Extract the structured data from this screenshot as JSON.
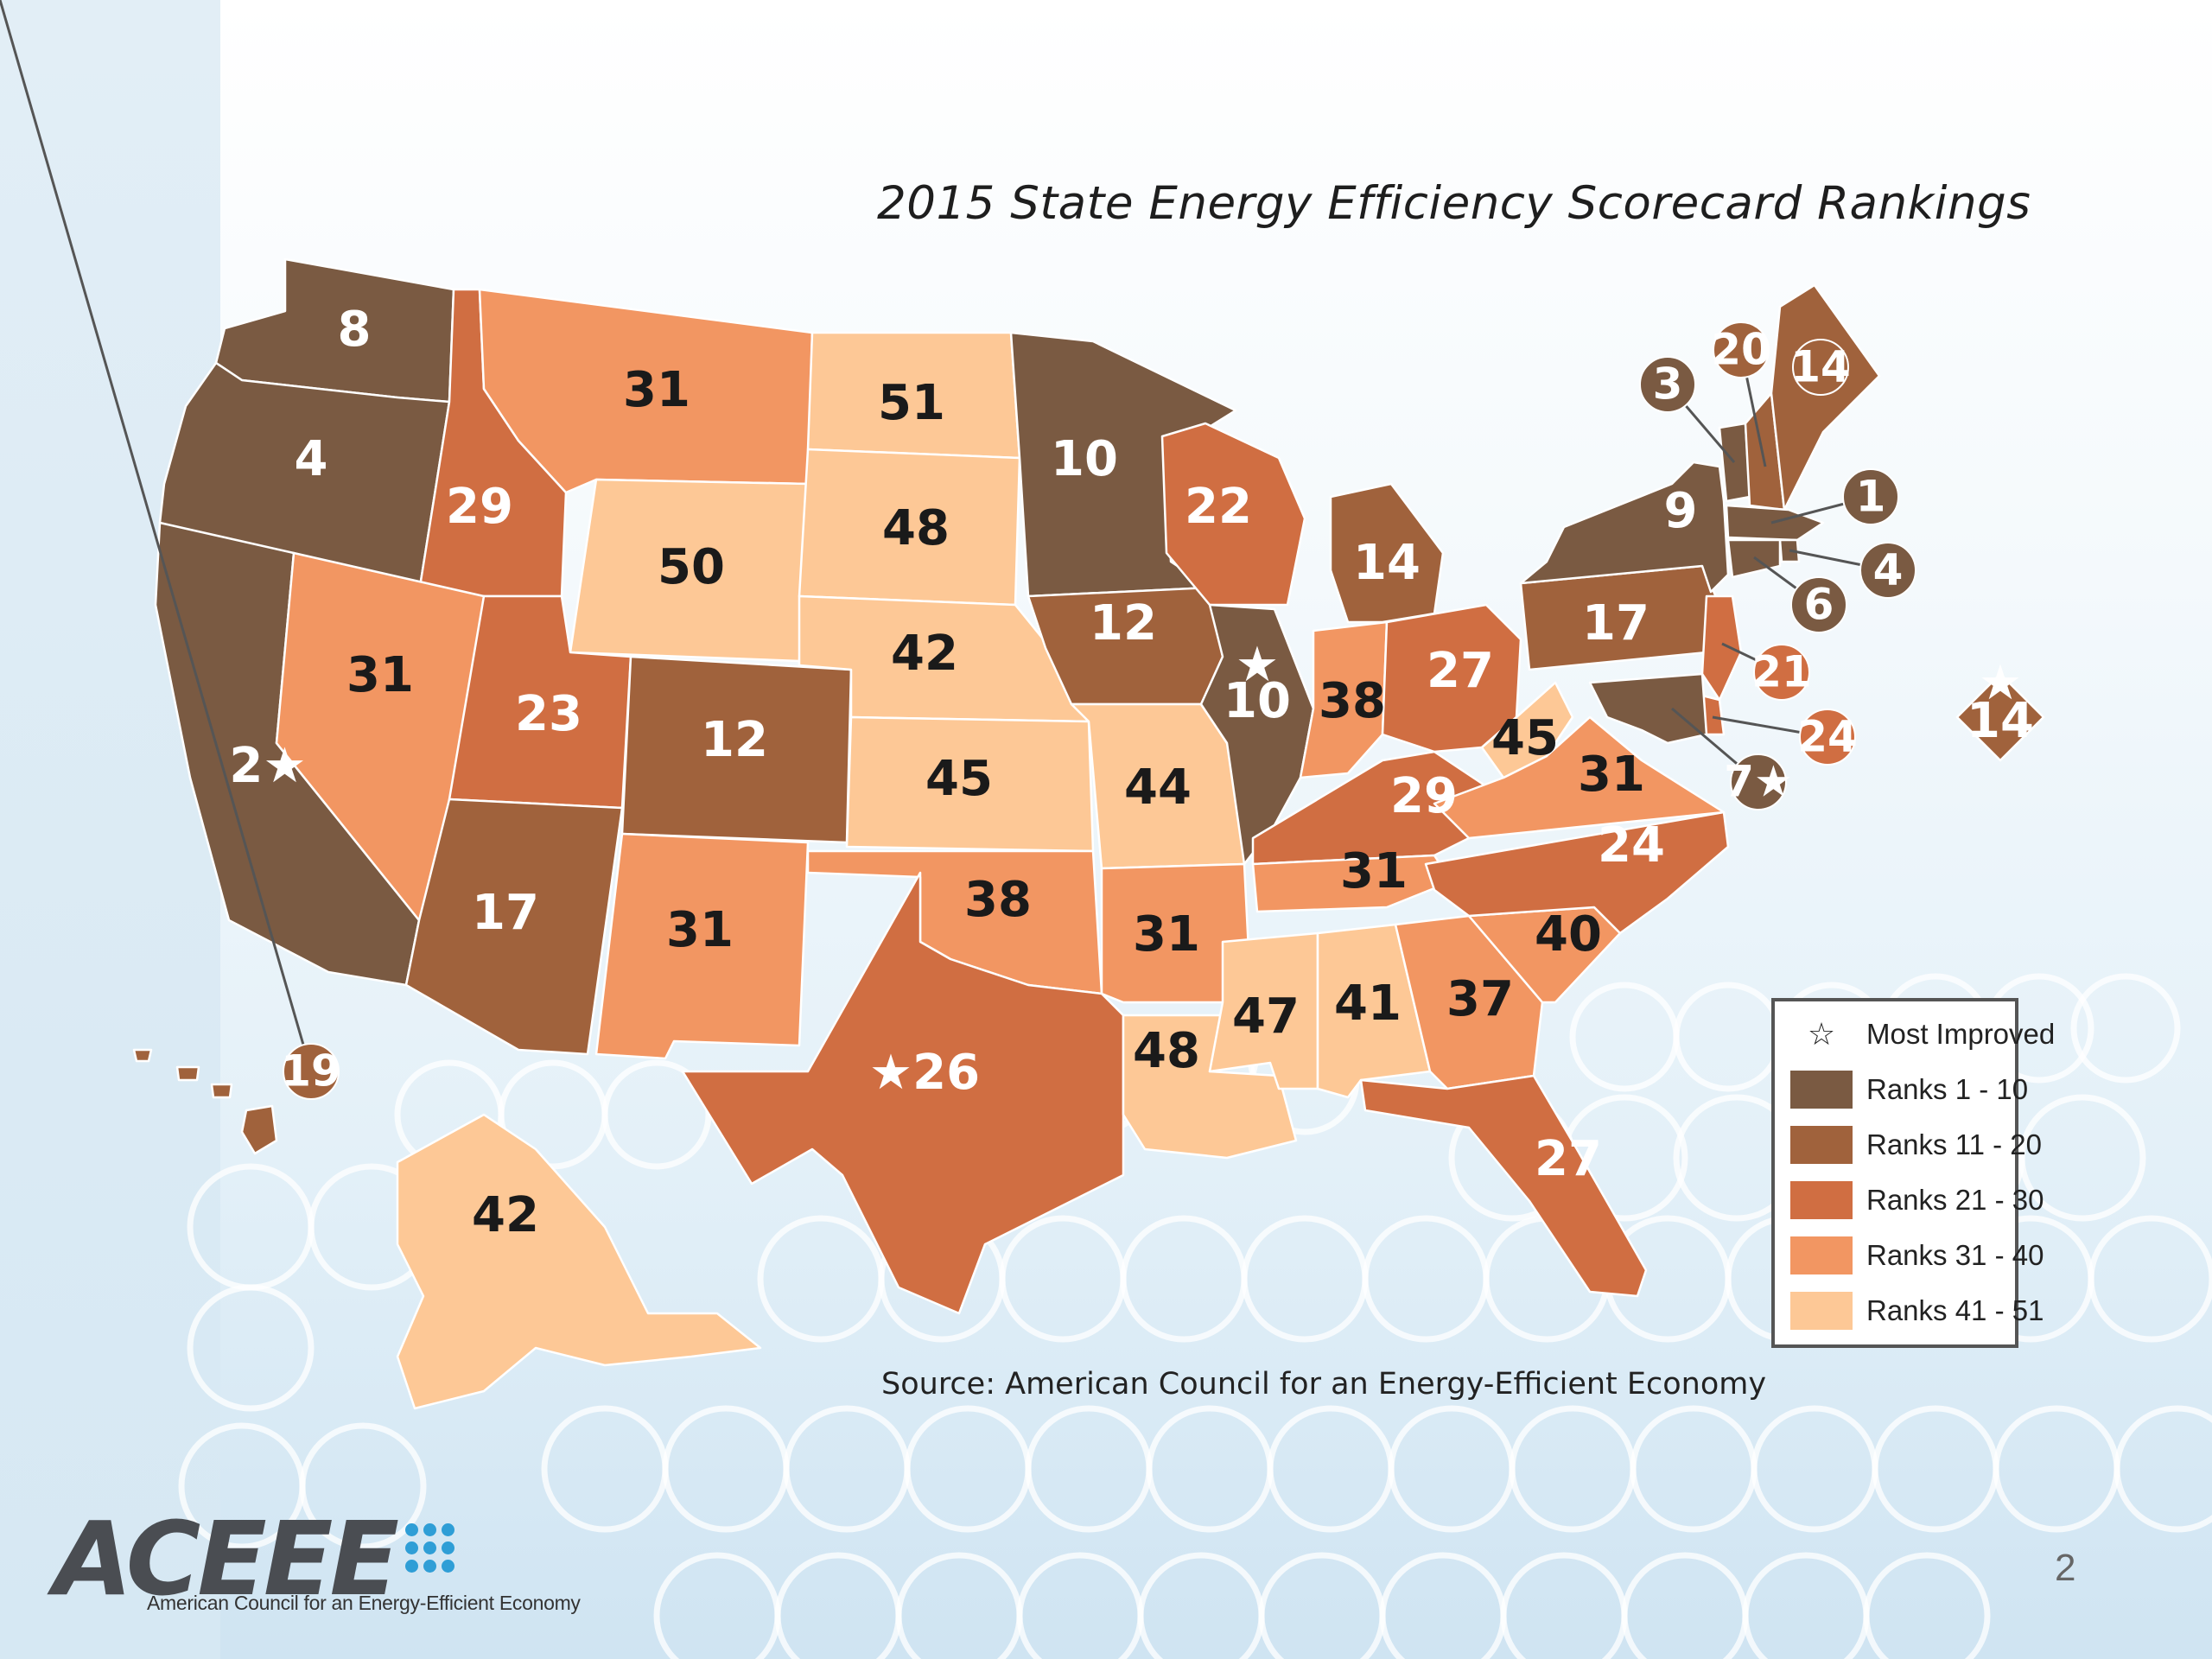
{
  "title": "2015 State Energy Efficiency Scorecard Rankings",
  "source": "Source: American Council for an Energy-Efficient Economy",
  "page_number": "2",
  "logo": {
    "name": "ACEEE",
    "subtitle": "American Council for an Energy-Efficient Economy"
  },
  "legend": {
    "most_improved": {
      "symbol": "☆",
      "label": "Most Improved"
    },
    "tiers": [
      {
        "label": "Ranks 1 - 10",
        "color": "#7a5a42"
      },
      {
        "label": "Ranks 11 - 20",
        "color": "#a0623c"
      },
      {
        "label": "Ranks 21 - 30",
        "color": "#d06e42"
      },
      {
        "label": "Ranks 31 - 40",
        "color": "#f29662"
      },
      {
        "label": "Ranks 41 - 51",
        "color": "#fdc896"
      }
    ]
  },
  "states": [
    {
      "code": "WA",
      "rank": "8",
      "tier": 0
    },
    {
      "code": "OR",
      "rank": "4",
      "tier": 0
    },
    {
      "code": "CA",
      "rank": "2",
      "tier": 0,
      "star": true
    },
    {
      "code": "ID",
      "rank": "29",
      "tier": 2
    },
    {
      "code": "NV",
      "rank": "31",
      "tier": 3
    },
    {
      "code": "MT",
      "rank": "31",
      "tier": 3
    },
    {
      "code": "WY",
      "rank": "50",
      "tier": 4
    },
    {
      "code": "UT",
      "rank": "23",
      "tier": 2
    },
    {
      "code": "AZ",
      "rank": "17",
      "tier": 1
    },
    {
      "code": "CO",
      "rank": "12",
      "tier": 1
    },
    {
      "code": "NM",
      "rank": "31",
      "tier": 3
    },
    {
      "code": "ND",
      "rank": "51",
      "tier": 4
    },
    {
      "code": "SD",
      "rank": "48",
      "tier": 4
    },
    {
      "code": "NE",
      "rank": "42",
      "tier": 4
    },
    {
      "code": "KS",
      "rank": "45",
      "tier": 4
    },
    {
      "code": "OK",
      "rank": "38",
      "tier": 3
    },
    {
      "code": "TX",
      "rank": "26",
      "tier": 2,
      "star": true
    },
    {
      "code": "MN",
      "rank": "10",
      "tier": 0
    },
    {
      "code": "IA",
      "rank": "12",
      "tier": 1
    },
    {
      "code": "MO",
      "rank": "44",
      "tier": 4
    },
    {
      "code": "AR",
      "rank": "31",
      "tier": 3
    },
    {
      "code": "LA",
      "rank": "48",
      "tier": 4
    },
    {
      "code": "WI",
      "rank": "22",
      "tier": 2
    },
    {
      "code": "IL",
      "rank": "10",
      "tier": 0,
      "star": true
    },
    {
      "code": "MI",
      "rank": "14",
      "tier": 1
    },
    {
      "code": "IN",
      "rank": "38",
      "tier": 3
    },
    {
      "code": "OH",
      "rank": "27",
      "tier": 2
    },
    {
      "code": "KY",
      "rank": "29",
      "tier": 2
    },
    {
      "code": "TN",
      "rank": "31",
      "tier": 3
    },
    {
      "code": "MS",
      "rank": "47",
      "tier": 4
    },
    {
      "code": "AL",
      "rank": "41",
      "tier": 4
    },
    {
      "code": "GA",
      "rank": "37",
      "tier": 3
    },
    {
      "code": "FL",
      "rank": "27",
      "tier": 2
    },
    {
      "code": "SC",
      "rank": "40",
      "tier": 3
    },
    {
      "code": "NC",
      "rank": "24",
      "tier": 2
    },
    {
      "code": "VA",
      "rank": "31",
      "tier": 3
    },
    {
      "code": "WV",
      "rank": "45",
      "tier": 4
    },
    {
      "code": "PA",
      "rank": "17",
      "tier": 1
    },
    {
      "code": "NY",
      "rank": "9",
      "tier": 0
    },
    {
      "code": "VT",
      "rank": "3",
      "tier": 0
    },
    {
      "code": "NH",
      "rank": "20",
      "tier": 1
    },
    {
      "code": "ME",
      "rank": "14",
      "tier": 1
    },
    {
      "code": "MA",
      "rank": "1",
      "tier": 0
    },
    {
      "code": "RI",
      "rank": "4",
      "tier": 0
    },
    {
      "code": "CT",
      "rank": "6",
      "tier": 0
    },
    {
      "code": "NJ",
      "rank": "21",
      "tier": 2
    },
    {
      "code": "DE",
      "rank": "24",
      "tier": 2
    },
    {
      "code": "MD",
      "rank": "7",
      "tier": 0,
      "star": true
    },
    {
      "code": "DC",
      "rank": "14",
      "tier": 1,
      "star": true
    },
    {
      "code": "AK",
      "rank": "42",
      "tier": 4
    },
    {
      "code": "HI",
      "rank": "19",
      "tier": 1
    }
  ]
}
